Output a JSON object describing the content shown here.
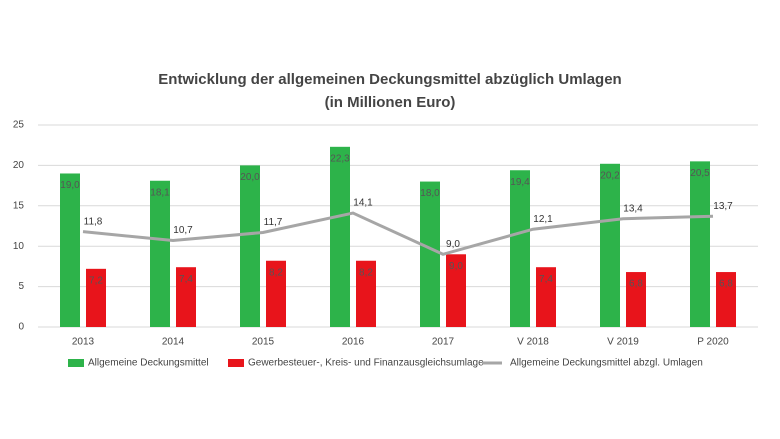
{
  "chart_data": {
    "type": "bar",
    "title": "Entwicklung der allgemeinen Deckungsmittel abzüglich Umlagen",
    "subtitle": "(in Millionen Euro)",
    "categories": [
      "2013",
      "2014",
      "2015",
      "2016",
      "2017",
      "V 2018",
      "V 2019",
      "P 2020"
    ],
    "series": [
      {
        "name": "Allgemeine Deckungsmittel",
        "type": "bar",
        "color": "#2db34a",
        "values": [
          19.0,
          18.1,
          20.0,
          22.3,
          18.0,
          19.4,
          20.2,
          20.5
        ],
        "value_labels": [
          "19,0",
          "18,1",
          "20,0",
          "22,3",
          "18,0",
          "19,4",
          "20,2",
          "20,5"
        ]
      },
      {
        "name": "Gewerbesteuer-, Kreis- und Finanzausgleichsumlage",
        "type": "bar",
        "color": "#e8141b",
        "values": [
          7.2,
          7.4,
          8.2,
          8.2,
          9.0,
          7.4,
          6.8,
          6.8
        ],
        "value_labels": [
          "7,2",
          "7,4",
          "8,2",
          "8,2",
          "9,0",
          "7,4",
          "6,8",
          "6,8"
        ]
      },
      {
        "name": "Allgemeine Deckungsmittel abzgl. Umlagen",
        "type": "line",
        "color": "#a6a6a6",
        "values": [
          11.8,
          10.7,
          11.7,
          14.1,
          9.0,
          12.1,
          13.4,
          13.7
        ],
        "value_labels": [
          "11,8",
          "10,7",
          "11,7",
          "14,1",
          "9,0",
          "12,1",
          "13,4",
          "13,7"
        ]
      }
    ],
    "ylim": [
      0,
      25
    ],
    "yticks": [
      0,
      5,
      10,
      15,
      20,
      25
    ],
    "grid": true,
    "legend": "bottom"
  }
}
